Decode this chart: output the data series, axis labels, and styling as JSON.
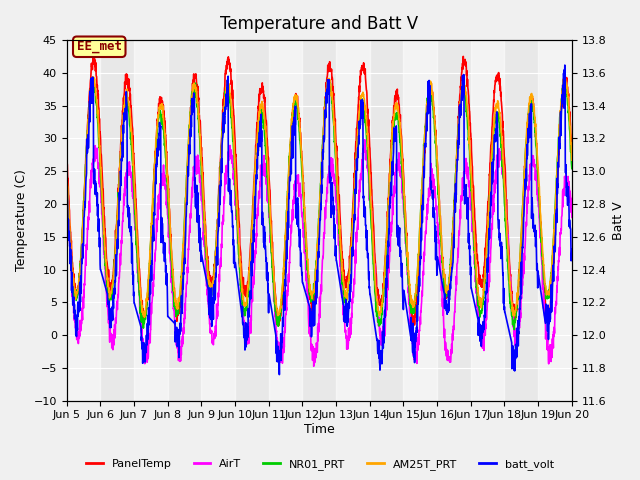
{
  "title": "Temperature and Batt V",
  "xlabel": "Time",
  "ylabel_left": "Temperature (C)",
  "ylabel_right": "Batt V",
  "ylim_left": [
    -10,
    45
  ],
  "ylim_right": [
    11.6,
    13.8
  ],
  "xlim": [
    0,
    15
  ],
  "x_tick_labels": [
    "Jun 5",
    "Jun 6",
    "Jun 7",
    "Jun 8",
    "Jun 9",
    "Jun 10",
    "Jun 11",
    "Jun 12",
    "Jun 13",
    "Jun 14",
    "Jun 15",
    "Jun 16",
    "Jun 17",
    "Jun 18",
    "Jun 19",
    "Jun 20"
  ],
  "x_tick_positions": [
    0,
    1,
    2,
    3,
    4,
    5,
    6,
    7,
    8,
    9,
    10,
    11,
    12,
    13,
    14,
    15
  ],
  "annotation_text": "EE_met",
  "annotation_color": "#8B0000",
  "annotation_bg": "#FFFF99",
  "bg_color": "#E8E8E8",
  "fig_bg": "#F0F0F0",
  "colors": {
    "PanelTemp": "#FF0000",
    "AirT": "#FF00FF",
    "NR01_PRT": "#00CC00",
    "AM25T_PRT": "#FFA500",
    "batt_volt": "#0000FF"
  },
  "linewidth": 1.2,
  "title_fontsize": 12,
  "label_fontsize": 9,
  "tick_fontsize": 8,
  "left_ticks": [
    -10,
    -5,
    0,
    5,
    10,
    15,
    20,
    25,
    30,
    35,
    40,
    45
  ],
  "right_ticks": [
    11.6,
    11.8,
    12.0,
    12.2,
    12.4,
    12.6,
    12.8,
    13.0,
    13.2,
    13.4,
    13.6,
    13.8
  ]
}
